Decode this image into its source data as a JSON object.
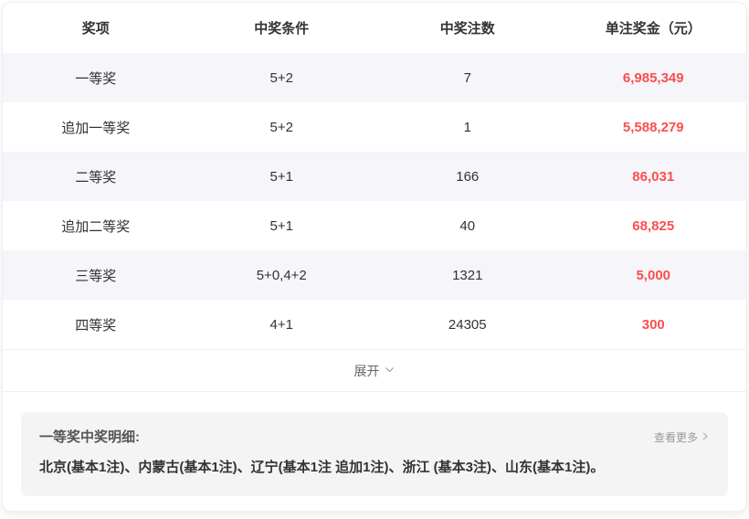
{
  "table": {
    "headers": [
      "奖项",
      "中奖条件",
      "中奖注数",
      "单注奖金（元）"
    ],
    "rows": [
      {
        "prize": "一等奖",
        "condition": "5+2",
        "count": "7",
        "amount": "6,985,349"
      },
      {
        "prize": "追加一等奖",
        "condition": "5+2",
        "count": "1",
        "amount": "5,588,279"
      },
      {
        "prize": "二等奖",
        "condition": "5+1",
        "count": "166",
        "amount": "86,031"
      },
      {
        "prize": "追加二等奖",
        "condition": "5+1",
        "count": "40",
        "amount": "68,825"
      },
      {
        "prize": "三等奖",
        "condition": "5+0,4+2",
        "count": "1321",
        "amount": "5,000"
      },
      {
        "prize": "四等奖",
        "condition": "4+1",
        "count": "24305",
        "amount": "300"
      }
    ],
    "expand_label": "展开"
  },
  "details": {
    "title": "一等奖中奖明细:",
    "more_label": "查看更多",
    "content": "北京(基本1注)、内蒙古(基本1注)、辽宁(基本1注 追加1注)、浙江 (基本3注)、山东(基本1注)。"
  },
  "colors": {
    "amount_red": "#fb4e4e",
    "row_alt_bg": "#f5f5fa",
    "detail_bg": "#f4f4f4"
  }
}
